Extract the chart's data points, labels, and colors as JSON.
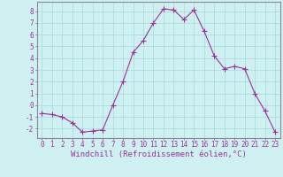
{
  "x": [
    0,
    1,
    2,
    3,
    4,
    5,
    6,
    7,
    8,
    9,
    10,
    11,
    12,
    13,
    14,
    15,
    16,
    17,
    18,
    19,
    20,
    21,
    22,
    23
  ],
  "y": [
    -0.7,
    -0.8,
    -1.0,
    -1.5,
    -2.3,
    -2.2,
    -2.1,
    0.0,
    2.0,
    4.5,
    5.5,
    7.0,
    8.2,
    8.1,
    7.3,
    8.1,
    6.3,
    4.2,
    3.1,
    3.3,
    3.1,
    1.0,
    -0.5,
    -2.3
  ],
  "line_color": "#993399",
  "marker": "D",
  "marker_size": 2,
  "linewidth": 0.8,
  "xlim": [
    -0.5,
    23.5
  ],
  "ylim": [
    -2.8,
    8.8
  ],
  "yticks": [
    -2,
    -1,
    0,
    1,
    2,
    3,
    4,
    5,
    6,
    7,
    8
  ],
  "xticks": [
    0,
    1,
    2,
    3,
    4,
    5,
    6,
    7,
    8,
    9,
    10,
    11,
    12,
    13,
    14,
    15,
    16,
    17,
    18,
    19,
    20,
    21,
    22,
    23
  ],
  "xlabel": "Windchill (Refroidissement éolien,°C)",
  "bg_color": "#cff0f0",
  "grid_color": "#aadddd",
  "line_border_color": "#888899",
  "tick_color": "#993399",
  "label_color": "#993399",
  "xlabel_fontsize": 6.5,
  "tick_fontsize": 5.5
}
